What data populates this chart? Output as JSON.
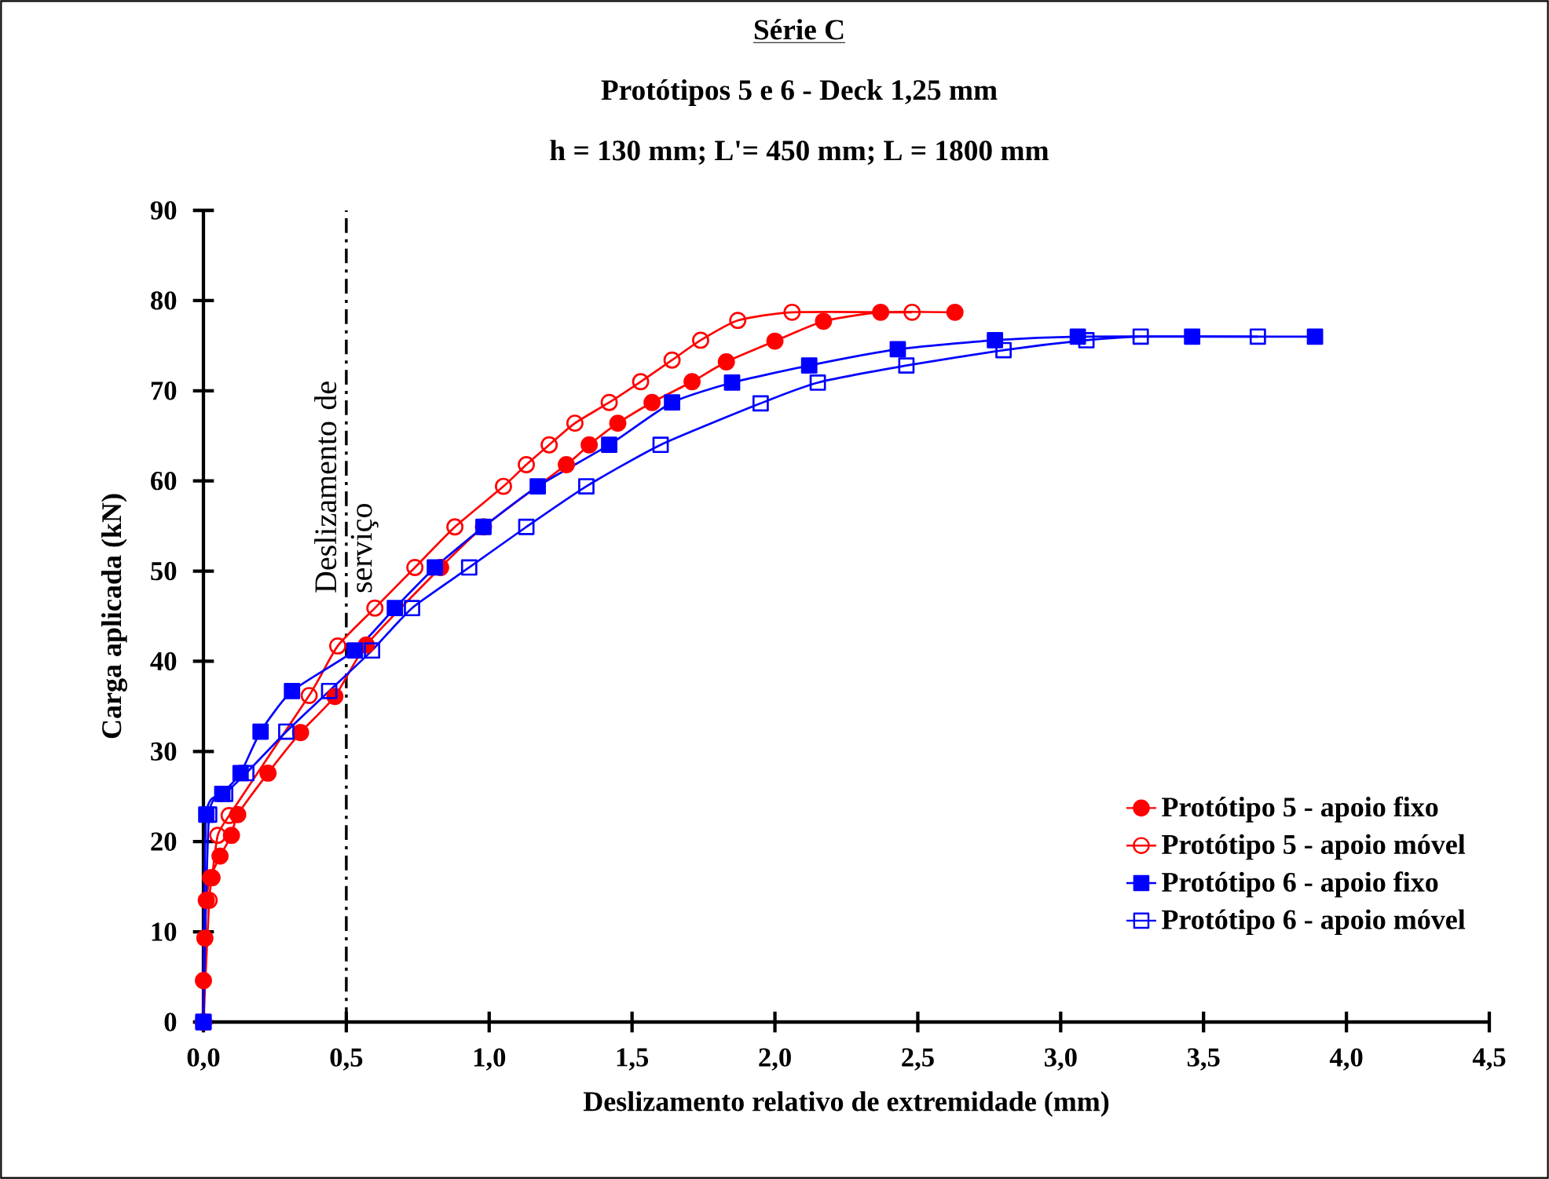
{
  "chart_data": {
    "type": "line",
    "title": "Série C",
    "subtitle": "Protótipos 5 e 6 - Deck 1,25 mm",
    "annotations": [
      "h = 130 mm; L'= 450 mm; L = 1800 mm"
    ],
    "xlabel": "Deslizamento relativo de extremidade (mm)",
    "ylabel": "Carga aplicada (kN)",
    "xlim": [
      0,
      4.5
    ],
    "ylim": [
      0,
      90
    ],
    "xticks": [
      {
        "value": 0,
        "label": "0,0"
      },
      {
        "value": 0.5,
        "label": "0,5"
      },
      {
        "value": 1,
        "label": "1,0"
      },
      {
        "value": 1.5,
        "label": "1,5"
      },
      {
        "value": 2,
        "label": "2,0"
      },
      {
        "value": 2.5,
        "label": "2,5"
      },
      {
        "value": 3,
        "label": "3,0"
      },
      {
        "value": 3.5,
        "label": "3,5"
      },
      {
        "value": 4,
        "label": "4,0"
      },
      {
        "value": 4.5,
        "label": "4,5"
      }
    ],
    "yticks": [
      0,
      10,
      20,
      30,
      40,
      50,
      60,
      70,
      80,
      90
    ],
    "grid": false,
    "legend": "bottom right",
    "ref_lines": [
      {
        "axis": "x",
        "value": 0.5,
        "label": "Deslizamento de serviço",
        "line_style": "dashdot",
        "color": "#000000"
      }
    ],
    "series": [
      {
        "name": "Protótipo 5 - apoio fixo",
        "color": "#ff0000",
        "marker": "circle",
        "x": [
          0,
          0,
          0.005,
          0.01,
          0.025,
          0.058,
          0.098,
          0.12,
          0.226,
          0.34,
          0.46,
          0.57,
          0.83,
          0.98,
          1.27,
          1.35,
          1.45,
          1.57,
          1.71,
          1.83,
          2.0,
          2.17,
          2.37,
          2.63
        ],
        "values": [
          0,
          4.6,
          9.3,
          13.5,
          16,
          18.4,
          20.7,
          23,
          27.6,
          32.1,
          36.1,
          41.8,
          50.4,
          54.9,
          61.8,
          64,
          66.4,
          68.7,
          71,
          73.2,
          75.5,
          77.7,
          78.7,
          78.7
        ]
      },
      {
        "name": "Protótipo 5 - apoio móvel",
        "color": "#ff0000",
        "marker": "circle-open",
        "x": [
          0,
          0.02,
          0.03,
          0.05,
          0.09,
          0.37,
          0.47,
          0.6,
          0.74,
          0.88,
          1.05,
          1.13,
          1.21,
          1.3,
          1.42,
          1.53,
          1.64,
          1.74,
          1.87,
          2.06,
          2.48
        ],
        "values": [
          0,
          13.5,
          16,
          20.7,
          22.9,
          36.2,
          41.7,
          45.9,
          50.4,
          54.9,
          59.4,
          61.8,
          64,
          66.4,
          68.7,
          71,
          73.4,
          75.6,
          77.8,
          78.7,
          78.7
        ]
      },
      {
        "name": "Protótipo 6 - apoio fixo",
        "color": "#0000ff",
        "marker": "square",
        "x": [
          0,
          0.01,
          0.066,
          0.13,
          0.2,
          0.31,
          0.53,
          0.67,
          0.81,
          0.98,
          1.17,
          1.42,
          1.64,
          1.85,
          2.12,
          2.43,
          2.77,
          3.06,
          3.46,
          3.89
        ],
        "values": [
          0,
          23,
          25.3,
          27.6,
          32.2,
          36.7,
          41.2,
          45.9,
          50.4,
          54.9,
          59.4,
          64,
          68.7,
          70.9,
          72.8,
          74.6,
          75.6,
          76,
          76,
          76
        ]
      },
      {
        "name": "Protótipo 6 - apoio móvel",
        "color": "#0000ff",
        "marker": "square-open",
        "x": [
          0,
          0.02,
          0.076,
          0.15,
          0.29,
          0.44,
          0.59,
          0.73,
          0.93,
          1.13,
          1.34,
          1.6,
          1.95,
          2.15,
          2.46,
          2.8,
          3.09,
          3.28,
          3.69
        ],
        "values": [
          0,
          23,
          25.3,
          27.6,
          32.2,
          36.7,
          41.2,
          45.9,
          50.4,
          54.9,
          59.4,
          64,
          68.6,
          70.9,
          72.8,
          74.5,
          75.6,
          76,
          76
        ]
      }
    ]
  }
}
